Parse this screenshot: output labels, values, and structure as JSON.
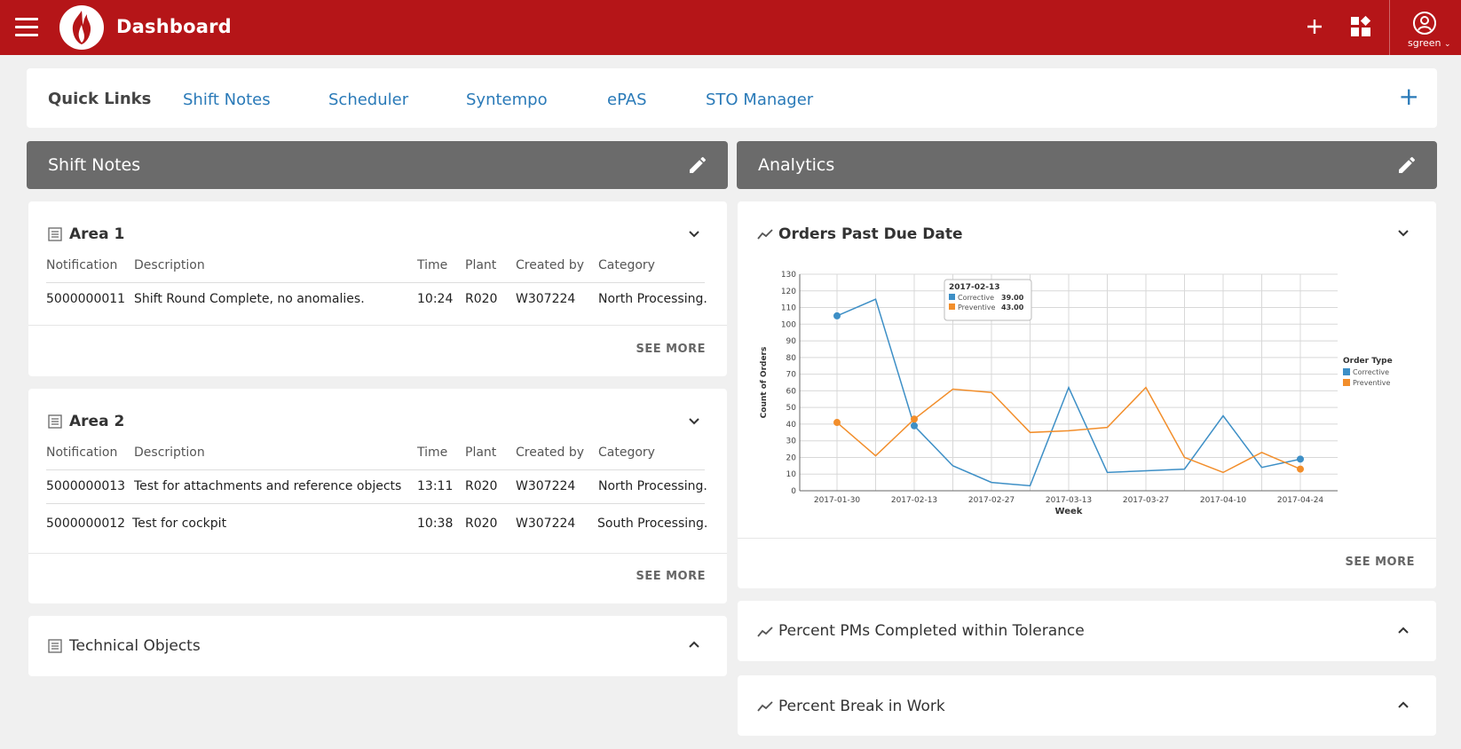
{
  "topbar": {
    "title": "Dashboard",
    "user": "sgreen"
  },
  "quick_links": {
    "title": "Quick Links",
    "links": [
      "Shift Notes",
      "Scheduler",
      "Syntempo",
      "ePAS",
      "STO Manager"
    ],
    "add_label": "+"
  },
  "shift_notes": {
    "title": "Shift Notes",
    "columns": [
      "Notification",
      "Description",
      "Time",
      "Plant",
      "Created by",
      "Category"
    ],
    "area1": {
      "title": "Area 1",
      "rows": [
        [
          "5000000011",
          "Shift Round Complete, no anomalies.",
          "10:24",
          "R020",
          "W307224",
          "North Processing..."
        ]
      ],
      "see_more": "SEE MORE"
    },
    "area2": {
      "title": "Area 2",
      "rows": [
        [
          "5000000013",
          "Test for attachments and reference objects",
          "13:11",
          "R020",
          "W307224",
          "North Processing..."
        ],
        [
          "5000000012",
          "Test for cockpit",
          "10:38",
          "R020",
          "W307224",
          "South Processing..."
        ]
      ],
      "see_more": "SEE MORE"
    },
    "technical_objects": {
      "title": "Technical Objects"
    }
  },
  "analytics": {
    "title": "Analytics",
    "orders_card": {
      "title": "Orders Past Due Date",
      "see_more": "SEE MORE"
    },
    "pm_card": {
      "title": "Percent PMs Completed within Tolerance"
    },
    "break_card": {
      "title": "Percent Break in Work"
    }
  },
  "colors": {
    "brand": "#b51518",
    "corrective": "#3d8fc6",
    "preventive": "#f28e2b",
    "link": "#2a7ab8"
  },
  "chart_data": {
    "type": "line",
    "xlabel": "Week",
    "ylabel": "Count of Orders",
    "ylim": [
      0,
      130
    ],
    "yticks": [
      0,
      10,
      20,
      30,
      40,
      50,
      60,
      70,
      80,
      90,
      100,
      110,
      120,
      130
    ],
    "x_tick_labels": [
      "2017-01-30",
      "2017-02-13",
      "2017-02-27",
      "2017-03-13",
      "2017-03-27",
      "2017-04-10",
      "2017-04-24"
    ],
    "x": [
      "2017-01-30",
      "2017-02-06",
      "2017-02-13",
      "2017-02-20",
      "2017-02-27",
      "2017-03-06",
      "2017-03-13",
      "2017-03-20",
      "2017-03-27",
      "2017-04-03",
      "2017-04-10",
      "2017-04-17",
      "2017-04-24"
    ],
    "series": [
      {
        "name": "Corrective",
        "values": [
          105,
          115,
          39,
          15,
          5,
          3,
          62,
          11,
          12,
          13,
          45,
          14,
          19
        ]
      },
      {
        "name": "Preventive",
        "values": [
          41,
          21,
          43,
          61,
          59,
          35,
          36,
          38,
          62,
          20,
          11,
          23,
          13
        ]
      }
    ],
    "legend": {
      "title": "Order Type",
      "placement": "right"
    },
    "grid": true,
    "tooltip": {
      "date": "2017-02-13",
      "rows": [
        {
          "name": "Corrective",
          "value": "39.00"
        },
        {
          "name": "Preventive",
          "value": "43.00"
        }
      ]
    }
  }
}
